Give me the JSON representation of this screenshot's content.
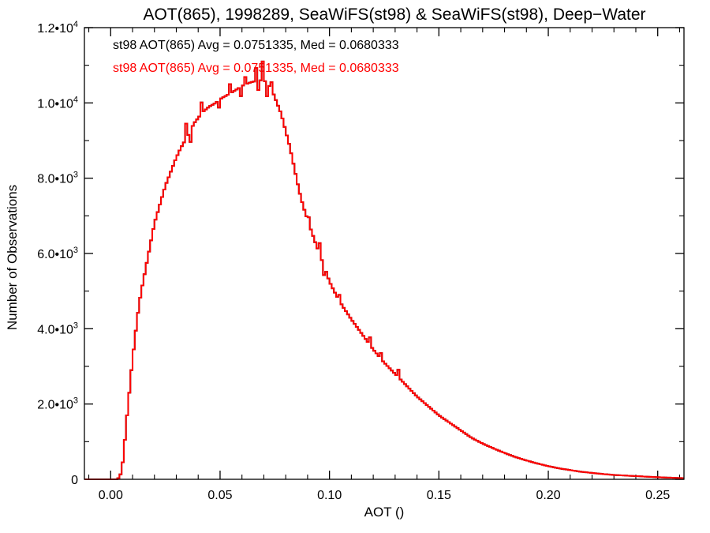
{
  "chart_data": {
    "type": "bar",
    "title": "AOT(865), 1998289, SeaWiFS(st98) & SeaWiFS(st98), Deep−Water",
    "xlabel": "AOT ()",
    "ylabel": "Number of Observations",
    "xlim": [
      -0.012,
      0.262
    ],
    "ylim": [
      0,
      12000
    ],
    "x_ticks": [
      {
        "value": 0.0,
        "label": "0.00"
      },
      {
        "value": 0.05,
        "label": "0.05"
      },
      {
        "value": 0.1,
        "label": "0.10"
      },
      {
        "value": 0.15,
        "label": "0.15"
      },
      {
        "value": 0.2,
        "label": "0.20"
      },
      {
        "value": 0.25,
        "label": "0.25"
      }
    ],
    "y_ticks": [
      {
        "value": 0,
        "mant": "0",
        "exp": ""
      },
      {
        "value": 2000,
        "mant": "2.0•10",
        "exp": "3"
      },
      {
        "value": 4000,
        "mant": "4.0•10",
        "exp": "3"
      },
      {
        "value": 6000,
        "mant": "6.0•10",
        "exp": "3"
      },
      {
        "value": 8000,
        "mant": "8.0•10",
        "exp": "3"
      },
      {
        "value": 10000,
        "mant": "1.0•10",
        "exp": "4"
      },
      {
        "value": 12000,
        "mant": "1.2•10",
        "exp": "4"
      }
    ],
    "annotations": [
      {
        "text": "st98 AOT(865) Avg = 0.0751335, Med = 0.0680333",
        "color": "#000000"
      },
      {
        "text": "st98 AOT(865) Avg = 0.0751335, Med = 0.0680333",
        "color": "#ff0000"
      }
    ],
    "series": [
      {
        "color": "#000000",
        "width": 2,
        "shape": "step"
      },
      {
        "color": "#ff0000",
        "width": 2,
        "shape": "step"
      }
    ],
    "bin_width": 0.001,
    "profile": [
      [
        -0.012,
        0
      ],
      [
        0.003,
        0
      ],
      [
        0.004,
        60
      ],
      [
        0.005,
        200
      ],
      [
        0.006,
        700
      ],
      [
        0.007,
        1400
      ],
      [
        0.008,
        2000
      ],
      [
        0.009,
        2600
      ],
      [
        0.01,
        3200
      ],
      [
        0.011,
        3700
      ],
      [
        0.012,
        4200
      ],
      [
        0.013,
        4650
      ],
      [
        0.014,
        5000
      ],
      [
        0.015,
        5300
      ],
      [
        0.016,
        5600
      ],
      [
        0.017,
        5900
      ],
      [
        0.018,
        6200
      ],
      [
        0.019,
        6500
      ],
      [
        0.02,
        6800
      ],
      [
        0.021,
        7000
      ],
      [
        0.022,
        7200
      ],
      [
        0.023,
        7400
      ],
      [
        0.024,
        7600
      ],
      [
        0.025,
        7800
      ],
      [
        0.026,
        7950
      ],
      [
        0.027,
        8100
      ],
      [
        0.028,
        8250
      ],
      [
        0.029,
        8400
      ],
      [
        0.03,
        8550
      ],
      [
        0.032,
        8800
      ],
      [
        0.034,
        9000
      ],
      [
        0.036,
        9200
      ],
      [
        0.038,
        9450
      ],
      [
        0.04,
        9600
      ],
      [
        0.042,
        9750
      ],
      [
        0.045,
        9900
      ],
      [
        0.048,
        10000
      ],
      [
        0.05,
        10100
      ],
      [
        0.053,
        10200
      ],
      [
        0.056,
        10300
      ],
      [
        0.06,
        10450
      ],
      [
        0.064,
        10550
      ],
      [
        0.068,
        10600
      ],
      [
        0.07,
        10600
      ],
      [
        0.072,
        10500
      ],
      [
        0.074,
        10300
      ],
      [
        0.076,
        10000
      ],
      [
        0.078,
        9700
      ],
      [
        0.08,
        9250
      ],
      [
        0.082,
        8800
      ],
      [
        0.084,
        8250
      ],
      [
        0.086,
        7700
      ],
      [
        0.088,
        7250
      ],
      [
        0.09,
        6900
      ],
      [
        0.092,
        6550
      ],
      [
        0.095,
        6050
      ],
      [
        0.098,
        5600
      ],
      [
        0.1,
        5250
      ],
      [
        0.103,
        4900
      ],
      [
        0.106,
        4600
      ],
      [
        0.11,
        4250
      ],
      [
        0.115,
        3850
      ],
      [
        0.12,
        3450
      ],
      [
        0.125,
        3100
      ],
      [
        0.13,
        2800
      ],
      [
        0.135,
        2500
      ],
      [
        0.14,
        2200
      ],
      [
        0.145,
        1950
      ],
      [
        0.15,
        1700
      ],
      [
        0.155,
        1500
      ],
      [
        0.16,
        1300
      ],
      [
        0.165,
        1100
      ],
      [
        0.17,
        950
      ],
      [
        0.175,
        820
      ],
      [
        0.18,
        700
      ],
      [
        0.185,
        590
      ],
      [
        0.19,
        500
      ],
      [
        0.195,
        420
      ],
      [
        0.2,
        350
      ],
      [
        0.205,
        290
      ],
      [
        0.21,
        245
      ],
      [
        0.215,
        200
      ],
      [
        0.22,
        170
      ],
      [
        0.225,
        140
      ],
      [
        0.23,
        115
      ],
      [
        0.24,
        85
      ],
      [
        0.25,
        55
      ],
      [
        0.262,
        30
      ]
    ],
    "bumps": [
      [
        0.034,
        400
      ],
      [
        0.036,
        -300
      ],
      [
        0.041,
        300
      ],
      [
        0.049,
        -200
      ],
      [
        0.054,
        250
      ],
      [
        0.059,
        -250
      ],
      [
        0.061,
        200
      ],
      [
        0.066,
        350
      ],
      [
        0.067,
        -250
      ],
      [
        0.069,
        500
      ],
      [
        0.071,
        -350
      ],
      [
        0.073,
        200
      ],
      [
        0.09,
        150
      ],
      [
        0.095,
        300
      ],
      [
        0.097,
        -250
      ],
      [
        0.104,
        150
      ],
      [
        0.118,
        200
      ],
      [
        0.123,
        150
      ],
      [
        0.131,
        200
      ]
    ]
  }
}
